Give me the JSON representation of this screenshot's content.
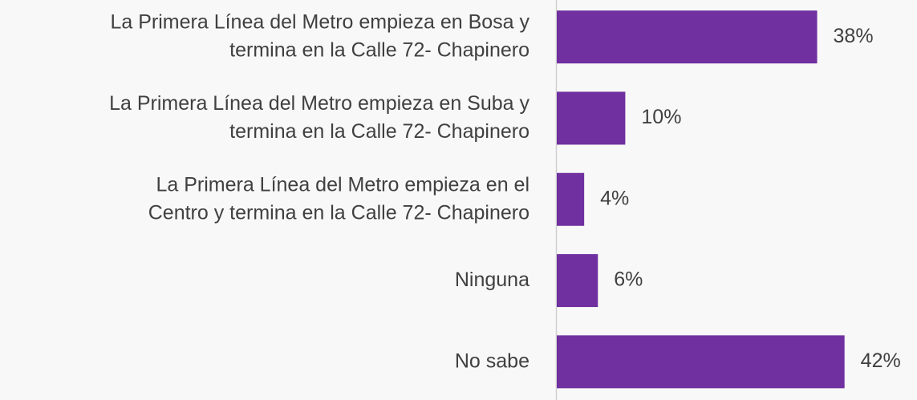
{
  "chart_data": {
    "type": "bar",
    "orientation": "horizontal",
    "categories": [
      "La Primera Línea del Metro empieza en Bosa y\ntermina en la Calle 72- Chapinero",
      "La Primera Línea del Metro empieza en Suba y\ntermina en la Calle 72- Chapinero",
      "La Primera Línea del Metro empieza en el\nCentro y termina en la Calle 72- Chapinero",
      "Ninguna",
      "No sabe"
    ],
    "values": [
      38,
      10,
      4,
      6,
      42
    ],
    "value_labels": [
      "38%",
      "10%",
      "4%",
      "6%",
      "42%"
    ],
    "color": "#7030a0",
    "xlim": [
      0,
      50
    ]
  }
}
